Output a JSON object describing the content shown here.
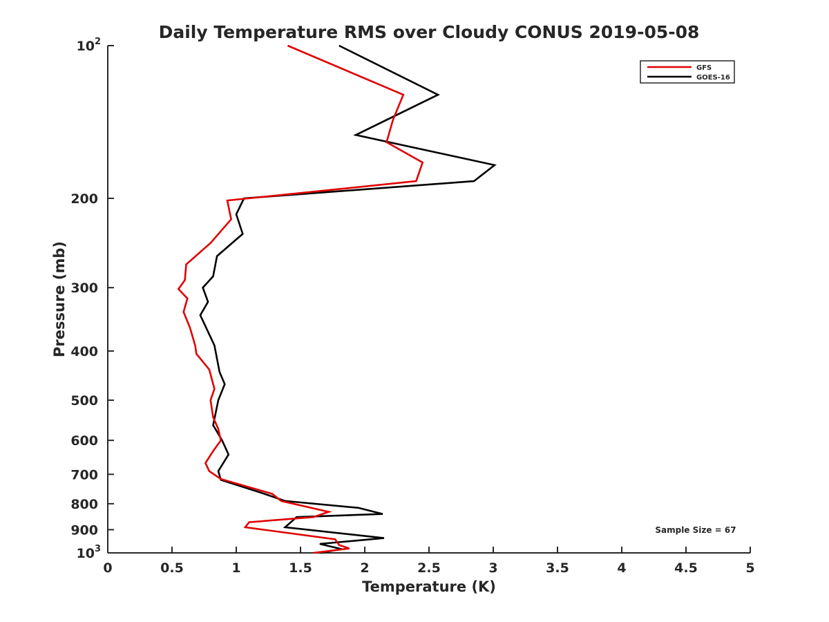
{
  "chart_data": {
    "type": "line",
    "title": "Daily Temperature RMS over Cloudy CONUS 2019-05-08",
    "xlabel": "Temperature (K)",
    "ylabel": "Pressure (mb)",
    "xlim": [
      0,
      5
    ],
    "ylim": [
      100,
      1000
    ],
    "y_scale": "log",
    "y_reversed": true,
    "x_ticks": [
      "0",
      "0.5",
      "1",
      "1.5",
      "2",
      "2.5",
      "3",
      "3.5",
      "4",
      "4.5",
      "5"
    ],
    "y_ticks": [
      {
        "value": 100,
        "base": "10",
        "exp": "2"
      },
      {
        "value": 200,
        "label": "200"
      },
      {
        "value": 300,
        "label": "300"
      },
      {
        "value": 400,
        "label": "400"
      },
      {
        "value": 500,
        "label": "500"
      },
      {
        "value": 600,
        "label": "600"
      },
      {
        "value": 700,
        "label": "700"
      },
      {
        "value": 800,
        "label": "800"
      },
      {
        "value": 900,
        "label": "900"
      },
      {
        "value": 1000,
        "base": "10",
        "exp": "3"
      }
    ],
    "grid": false,
    "legend_position": "top-right",
    "annotation": "Sample Size = 67",
    "series": [
      {
        "name": "GFS",
        "color": "#e00000",
        "points": [
          {
            "x": 1.4,
            "y": 100
          },
          {
            "x": 2.3,
            "y": 125
          },
          {
            "x": 2.22,
            "y": 140
          },
          {
            "x": 2.17,
            "y": 155
          },
          {
            "x": 2.45,
            "y": 170
          },
          {
            "x": 2.4,
            "y": 185
          },
          {
            "x": 0.93,
            "y": 202
          },
          {
            "x": 0.96,
            "y": 220
          },
          {
            "x": 0.8,
            "y": 245
          },
          {
            "x": 0.61,
            "y": 270
          },
          {
            "x": 0.6,
            "y": 290
          },
          {
            "x": 0.55,
            "y": 302
          },
          {
            "x": 0.62,
            "y": 315
          },
          {
            "x": 0.59,
            "y": 335
          },
          {
            "x": 0.64,
            "y": 360
          },
          {
            "x": 0.68,
            "y": 390
          },
          {
            "x": 0.69,
            "y": 405
          },
          {
            "x": 0.79,
            "y": 435
          },
          {
            "x": 0.83,
            "y": 475
          },
          {
            "x": 0.8,
            "y": 500
          },
          {
            "x": 0.82,
            "y": 540
          },
          {
            "x": 0.86,
            "y": 570
          },
          {
            "x": 0.88,
            "y": 600
          },
          {
            "x": 0.82,
            "y": 630
          },
          {
            "x": 0.76,
            "y": 665
          },
          {
            "x": 0.79,
            "y": 690
          },
          {
            "x": 0.88,
            "y": 715
          },
          {
            "x": 1.28,
            "y": 765
          },
          {
            "x": 1.35,
            "y": 790
          },
          {
            "x": 1.72,
            "y": 830
          },
          {
            "x": 1.6,
            "y": 850
          },
          {
            "x": 1.1,
            "y": 870
          },
          {
            "x": 1.07,
            "y": 890
          },
          {
            "x": 1.77,
            "y": 940
          },
          {
            "x": 1.8,
            "y": 965
          },
          {
            "x": 1.88,
            "y": 980
          },
          {
            "x": 1.6,
            "y": 1000
          }
        ]
      },
      {
        "name": "GOES-16",
        "color": "#000000",
        "points": [
          {
            "x": 1.8,
            "y": 100
          },
          {
            "x": 2.57,
            "y": 125
          },
          {
            "x": 1.93,
            "y": 150
          },
          {
            "x": 3.01,
            "y": 172
          },
          {
            "x": 2.85,
            "y": 185
          },
          {
            "x": 1.06,
            "y": 200
          },
          {
            "x": 1.0,
            "y": 215
          },
          {
            "x": 1.05,
            "y": 235
          },
          {
            "x": 0.85,
            "y": 260
          },
          {
            "x": 0.82,
            "y": 285
          },
          {
            "x": 0.74,
            "y": 300
          },
          {
            "x": 0.78,
            "y": 320
          },
          {
            "x": 0.72,
            "y": 340
          },
          {
            "x": 0.83,
            "y": 390
          },
          {
            "x": 0.87,
            "y": 440
          },
          {
            "x": 0.91,
            "y": 465
          },
          {
            "x": 0.86,
            "y": 500
          },
          {
            "x": 0.82,
            "y": 560
          },
          {
            "x": 0.89,
            "y": 600
          },
          {
            "x": 0.94,
            "y": 640
          },
          {
            "x": 0.86,
            "y": 690
          },
          {
            "x": 0.88,
            "y": 718
          },
          {
            "x": 1.22,
            "y": 765
          },
          {
            "x": 1.38,
            "y": 790
          },
          {
            "x": 1.95,
            "y": 815
          },
          {
            "x": 2.14,
            "y": 838
          },
          {
            "x": 1.47,
            "y": 850
          },
          {
            "x": 1.38,
            "y": 890
          },
          {
            "x": 2.15,
            "y": 935
          },
          {
            "x": 1.65,
            "y": 960
          },
          {
            "x": 1.82,
            "y": 983
          },
          {
            "x": 1.65,
            "y": 1000
          }
        ]
      }
    ]
  }
}
